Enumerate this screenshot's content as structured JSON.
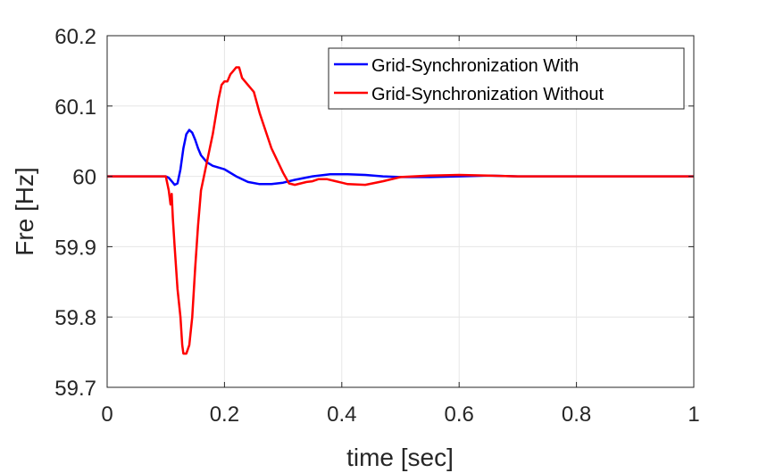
{
  "chart_data": {
    "type": "line",
    "title": "",
    "xlabel": "time [sec]",
    "ylabel": "Fre [Hz]",
    "xlim": [
      0,
      1
    ],
    "ylim": [
      59.7,
      60.2
    ],
    "xticks": [
      0,
      0.2,
      0.4,
      0.6,
      0.8,
      1
    ],
    "xtick_labels": [
      "0",
      "0.2",
      "0.4",
      "0.6",
      "0.8",
      "1"
    ],
    "yticks": [
      59.7,
      59.8,
      59.9,
      60,
      60.1,
      60.2
    ],
    "ytick_labels": [
      "59.7",
      "59.8",
      "59.9",
      "60",
      "60.1",
      "60.2"
    ],
    "grid": true,
    "legend_position": "top-right",
    "series": [
      {
        "name": "Grid-Synchronization With",
        "color": "#0000ff",
        "x": [
          0,
          0.1,
          0.105,
          0.11,
          0.115,
          0.12,
          0.125,
          0.13,
          0.135,
          0.14,
          0.145,
          0.15,
          0.155,
          0.16,
          0.17,
          0.18,
          0.2,
          0.22,
          0.24,
          0.26,
          0.28,
          0.3,
          0.32,
          0.35,
          0.38,
          0.41,
          0.44,
          0.47,
          0.5,
          0.55,
          0.6,
          0.65,
          0.7,
          0.8,
          0.9,
          1.0
        ],
        "y": [
          60,
          60,
          59.998,
          59.993,
          59.988,
          59.99,
          60.01,
          60.04,
          60.06,
          60.066,
          60.062,
          60.052,
          60.04,
          60.03,
          60.02,
          60.015,
          60.01,
          60.0,
          59.992,
          59.989,
          59.989,
          59.991,
          59.995,
          60.0,
          60.003,
          60.003,
          60.002,
          60.0,
          59.999,
          59.999,
          60.0,
          60.001,
          60.0,
          60.0,
          60.0,
          60.0
        ]
      },
      {
        "name": "Grid-Synchronization Without",
        "color": "#ff0000",
        "x": [
          0,
          0.1,
          0.105,
          0.108,
          0.11,
          0.112,
          0.115,
          0.12,
          0.125,
          0.128,
          0.13,
          0.135,
          0.14,
          0.145,
          0.15,
          0.155,
          0.16,
          0.165,
          0.17,
          0.18,
          0.19,
          0.195,
          0.2,
          0.205,
          0.21,
          0.215,
          0.22,
          0.225,
          0.23,
          0.24,
          0.25,
          0.26,
          0.28,
          0.3,
          0.31,
          0.32,
          0.33,
          0.34,
          0.35,
          0.36,
          0.375,
          0.39,
          0.41,
          0.44,
          0.47,
          0.5,
          0.55,
          0.6,
          0.65,
          0.7,
          0.8,
          0.9,
          1.0
        ],
        "y": [
          60,
          60,
          59.98,
          59.96,
          59.975,
          59.94,
          59.9,
          59.84,
          59.8,
          59.76,
          59.748,
          59.748,
          59.76,
          59.8,
          59.87,
          59.93,
          59.98,
          60.0,
          60.02,
          60.06,
          60.11,
          60.13,
          60.135,
          60.135,
          60.145,
          60.15,
          60.155,
          60.155,
          60.14,
          60.13,
          60.12,
          60.09,
          60.04,
          60.005,
          59.99,
          59.988,
          59.99,
          59.992,
          59.993,
          59.996,
          59.996,
          59.993,
          59.989,
          59.988,
          59.993,
          59.999,
          60.001,
          60.002,
          60.001,
          60.0,
          60.0,
          60.0,
          60.0
        ]
      }
    ]
  }
}
